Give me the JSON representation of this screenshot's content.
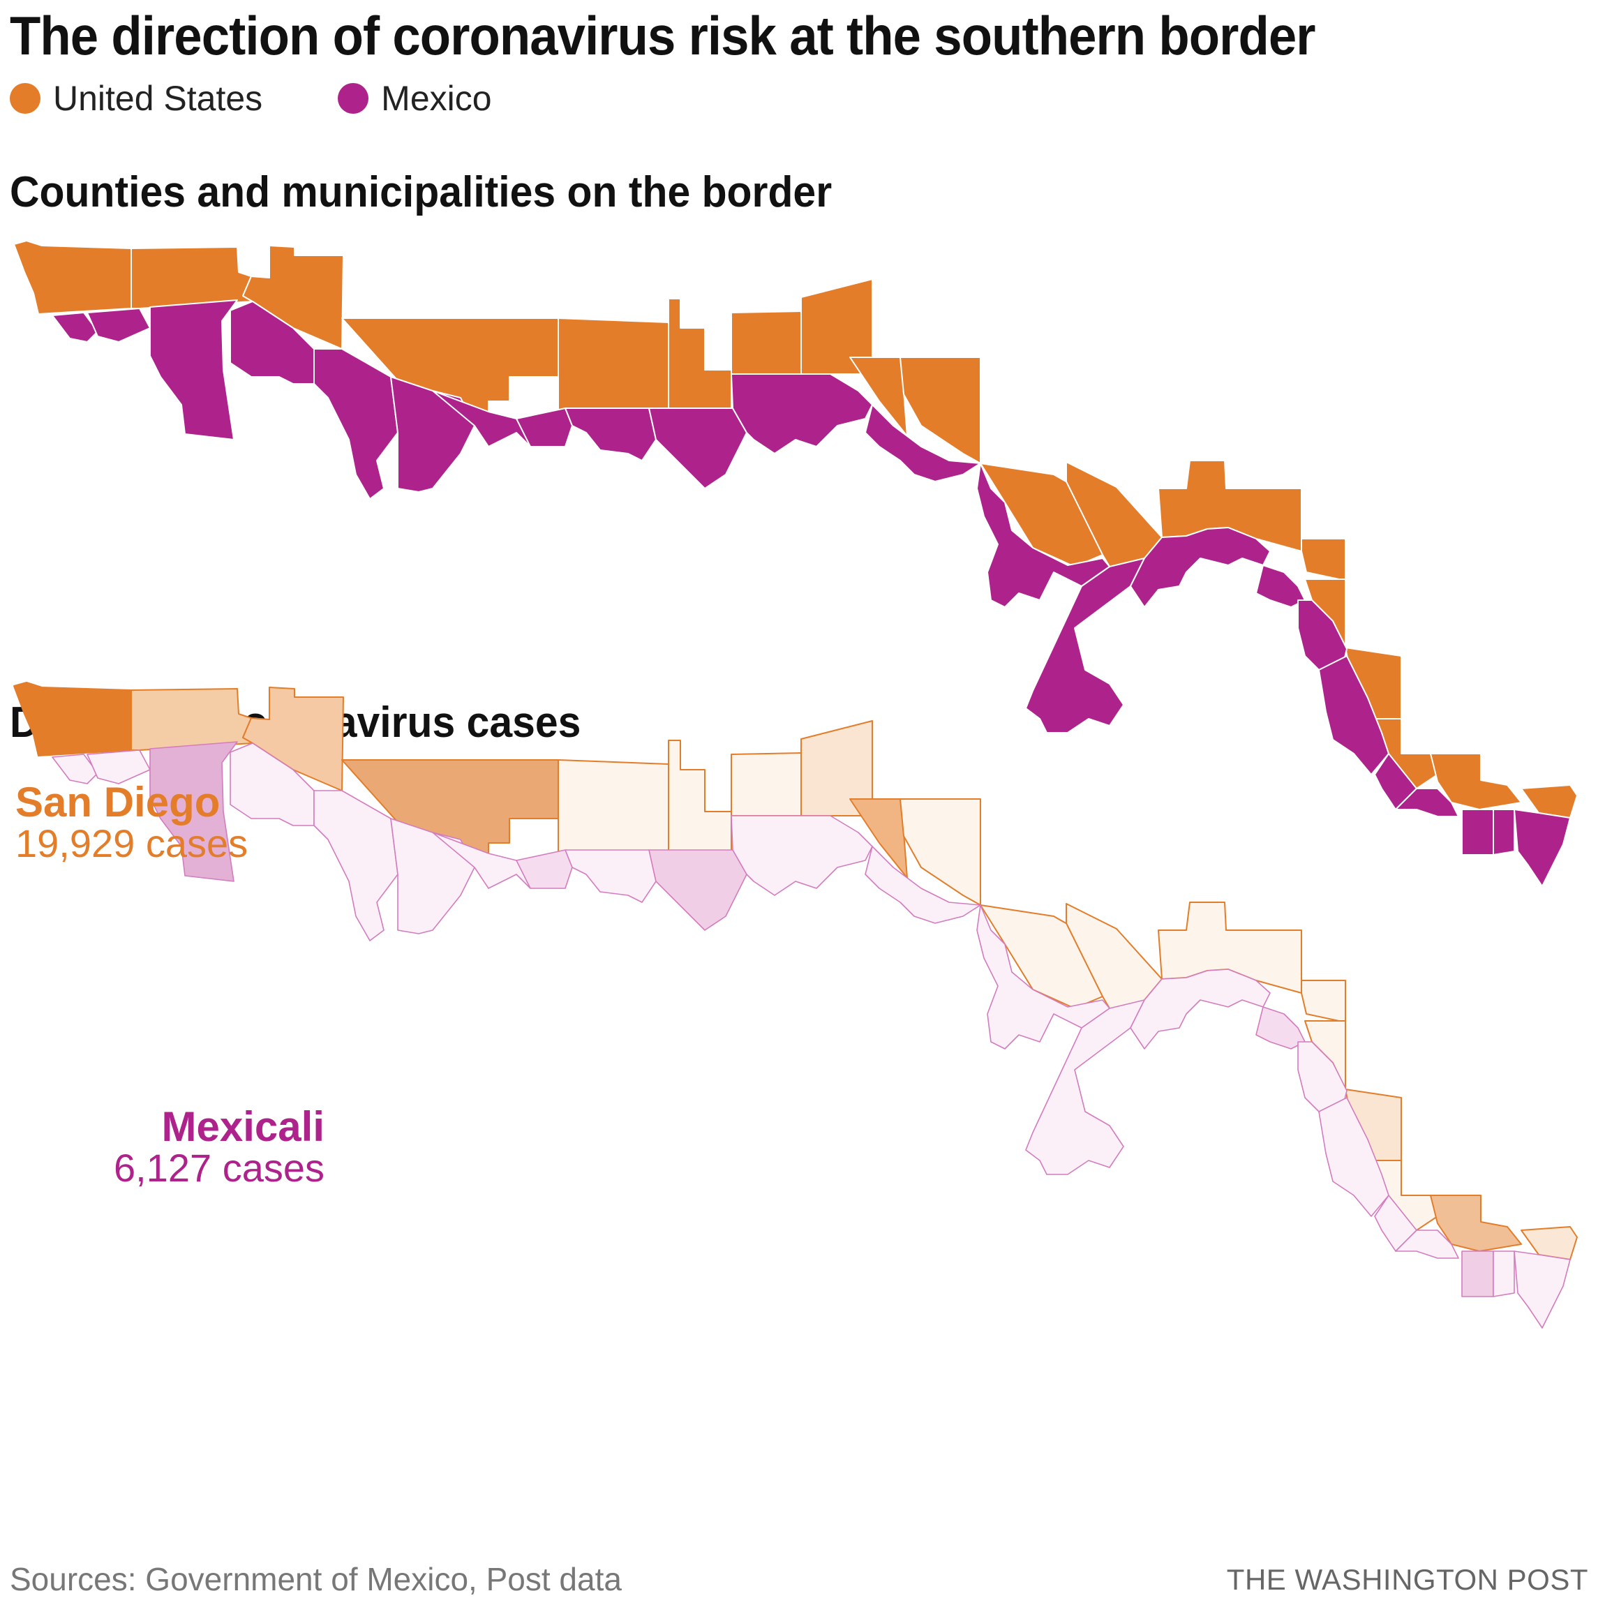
{
  "title": "The direction of coronavirus risk at the southern border",
  "legend": [
    {
      "label": "United States",
      "color": "#e37d2a"
    },
    {
      "label": "Mexico",
      "color": "#ae228b"
    }
  ],
  "maps": {
    "borders": {
      "title": "Counties and municipalities on the border"
    },
    "density": {
      "title": "Density of coronavirus cases"
    }
  },
  "callouts": {
    "us": {
      "name": "San Diego",
      "cases": "19,929 cases",
      "color": "#e37d2a"
    },
    "mx": {
      "name": "Mexicali",
      "cases": "6,127 cases",
      "color": "#ae228b"
    }
  },
  "colors": {
    "us_full": "#e37d2a",
    "mx_full": "#ae228b",
    "us_light": "#fdf4ec",
    "us_mid": "#f4cda6",
    "us_dark": "#eaa874",
    "mx_light": "#fbeff8",
    "mx_mid": "#e3b0d6"
  },
  "footer": {
    "source": "Sources: Government of Mexico, Post data",
    "credit": "THE WASHINGTON POST"
  }
}
